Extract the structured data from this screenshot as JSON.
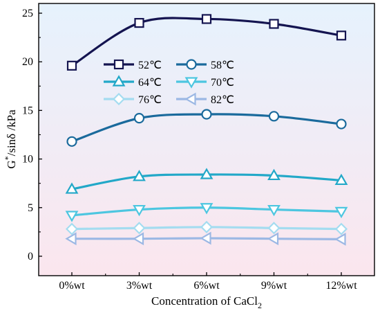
{
  "chart_data": {
    "type": "line",
    "title": "",
    "xlabel": "Concentration of CaCl",
    "xlabel_subscript": "2",
    "ylabel": "G*/sinδ /kPa",
    "ylabel_parts": {
      "base": "G",
      "sup": "*",
      "rest": "/sinδ /kPa"
    },
    "categories": [
      "0%wt",
      "3%wt",
      "6%wt",
      "9%wt",
      "12%wt"
    ],
    "ylim": [
      -2,
      26
    ],
    "yticks": [
      "0",
      "5",
      "10",
      "15",
      "20",
      "25"
    ],
    "yticks_values": [
      0,
      5,
      10,
      15,
      20,
      25
    ],
    "grid": false,
    "legend_position": "upper-left",
    "background": {
      "top": "#e6f2fd",
      "bottom": "#fbe6ee"
    },
    "series": [
      {
        "name": "52℃",
        "marker": "square",
        "color": "#141450",
        "values": [
          19.6,
          24.0,
          24.4,
          23.9,
          22.7
        ]
      },
      {
        "name": "58℃",
        "marker": "circle",
        "color": "#1a6a9c",
        "values": [
          11.8,
          14.2,
          14.6,
          14.4,
          13.6
        ]
      },
      {
        "name": "64℃",
        "marker": "triangle-up",
        "color": "#22a8c8",
        "values": [
          6.9,
          8.2,
          8.4,
          8.3,
          7.8
        ]
      },
      {
        "name": "70℃",
        "marker": "triangle-down",
        "color": "#4cc6e0",
        "values": [
          4.2,
          4.8,
          5.0,
          4.8,
          4.6
        ]
      },
      {
        "name": "76℃",
        "marker": "diamond",
        "color": "#a4dcf0",
        "values": [
          2.8,
          2.9,
          3.0,
          2.9,
          2.8
        ]
      },
      {
        "name": "82℃",
        "marker": "triangle-left",
        "color": "#9cb8e4",
        "values": [
          1.8,
          1.8,
          1.85,
          1.8,
          1.75
        ]
      }
    ]
  }
}
